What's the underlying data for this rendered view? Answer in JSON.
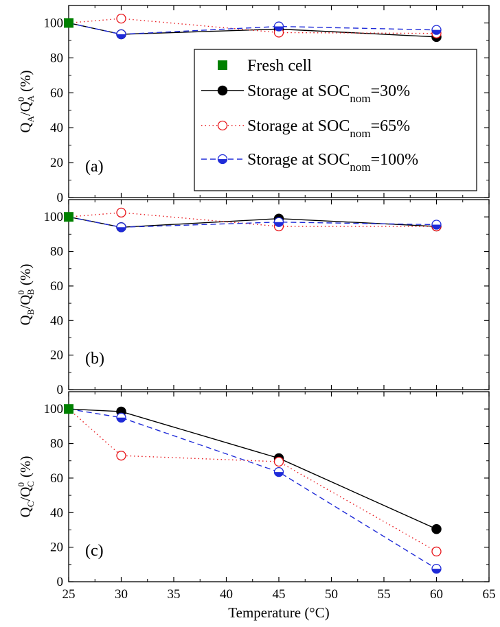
{
  "colors": {
    "fresh": "#008000",
    "soc30": "#000000",
    "soc65": "#e8161b",
    "soc100": "#1f2bd8"
  },
  "chart_data": [
    {
      "type": "line",
      "panel_label": "(a)",
      "ylabel": {
        "main": "Q",
        "sub": "A",
        "den": "/Q",
        "den_sup": "0",
        "den_sub": "A",
        "unit": " (%)"
      },
      "xlim": [
        25,
        65
      ],
      "ylim": [
        0,
        110
      ],
      "xticks": [
        25,
        30,
        35,
        40,
        45,
        50,
        55,
        60,
        65
      ],
      "yticks": [
        0,
        20,
        40,
        60,
        80,
        100
      ],
      "legend": {
        "placement": "right",
        "entries": [
          {
            "key": "fresh",
            "text": "Fresh cell",
            "sub": "",
            "tail": ""
          },
          {
            "key": "soc30",
            "text": "Storage at SOC",
            "sub": "nom",
            "tail": "=30%"
          },
          {
            "key": "soc65",
            "text": "Storage at SOC",
            "sub": "nom",
            "tail": "=65%"
          },
          {
            "key": "soc100",
            "text": "Storage at SOC",
            "sub": "nom",
            "tail": "=100%"
          }
        ]
      },
      "series": [
        {
          "key": "fresh",
          "x": [
            25
          ],
          "y": [
            100
          ]
        },
        {
          "key": "soc30",
          "x": [
            25,
            30,
            45,
            60
          ],
          "y": [
            100,
            93.5,
            96.5,
            92
          ]
        },
        {
          "key": "soc65",
          "x": [
            25,
            30,
            45,
            60
          ],
          "y": [
            100,
            102.5,
            94.5,
            94
          ]
        },
        {
          "key": "soc100",
          "x": [
            25,
            30,
            45,
            60
          ],
          "y": [
            100,
            93.5,
            98,
            96
          ]
        }
      ]
    },
    {
      "type": "line",
      "panel_label": "(b)",
      "ylabel": {
        "main": "Q",
        "sub": "B",
        "den": "/Q",
        "den_sup": "0",
        "den_sub": "B",
        "unit": " (%)"
      },
      "xlim": [
        25,
        65
      ],
      "ylim": [
        0,
        110
      ],
      "xticks": [
        25,
        30,
        35,
        40,
        45,
        50,
        55,
        60,
        65
      ],
      "yticks": [
        0,
        20,
        40,
        60,
        80,
        100
      ],
      "series": [
        {
          "key": "fresh",
          "x": [
            25
          ],
          "y": [
            100
          ]
        },
        {
          "key": "soc30",
          "x": [
            25,
            30,
            45,
            60
          ],
          "y": [
            100,
            94,
            99,
            94.5
          ]
        },
        {
          "key": "soc65",
          "x": [
            25,
            30,
            45,
            60
          ],
          "y": [
            100,
            102.5,
            94.5,
            94.5
          ]
        },
        {
          "key": "soc100",
          "x": [
            25,
            30,
            45,
            60
          ],
          "y": [
            100,
            94,
            97,
            95.5
          ]
        }
      ]
    },
    {
      "type": "line",
      "panel_label": "(c)",
      "xlabel": "Temperature (°C)",
      "ylabel": {
        "main": "Q",
        "sub": "C",
        "den": "/Q",
        "den_sup": "0",
        "den_sub": "C",
        "unit": " (%)"
      },
      "xlim": [
        25,
        65
      ],
      "ylim": [
        0,
        110
      ],
      "xticks": [
        25,
        30,
        35,
        40,
        45,
        50,
        55,
        60,
        65
      ],
      "yticks": [
        0,
        20,
        40,
        60,
        80,
        100
      ],
      "series": [
        {
          "key": "fresh",
          "x": [
            25
          ],
          "y": [
            100
          ]
        },
        {
          "key": "soc30",
          "x": [
            25,
            30,
            45,
            60
          ],
          "y": [
            100,
            98.5,
            71.5,
            30.5
          ]
        },
        {
          "key": "soc65",
          "x": [
            25,
            30,
            45,
            60
          ],
          "y": [
            100,
            73,
            69.5,
            17.5
          ]
        },
        {
          "key": "soc100",
          "x": [
            25,
            30,
            45,
            60
          ],
          "y": [
            100,
            95,
            63.5,
            7.5
          ]
        }
      ]
    }
  ]
}
